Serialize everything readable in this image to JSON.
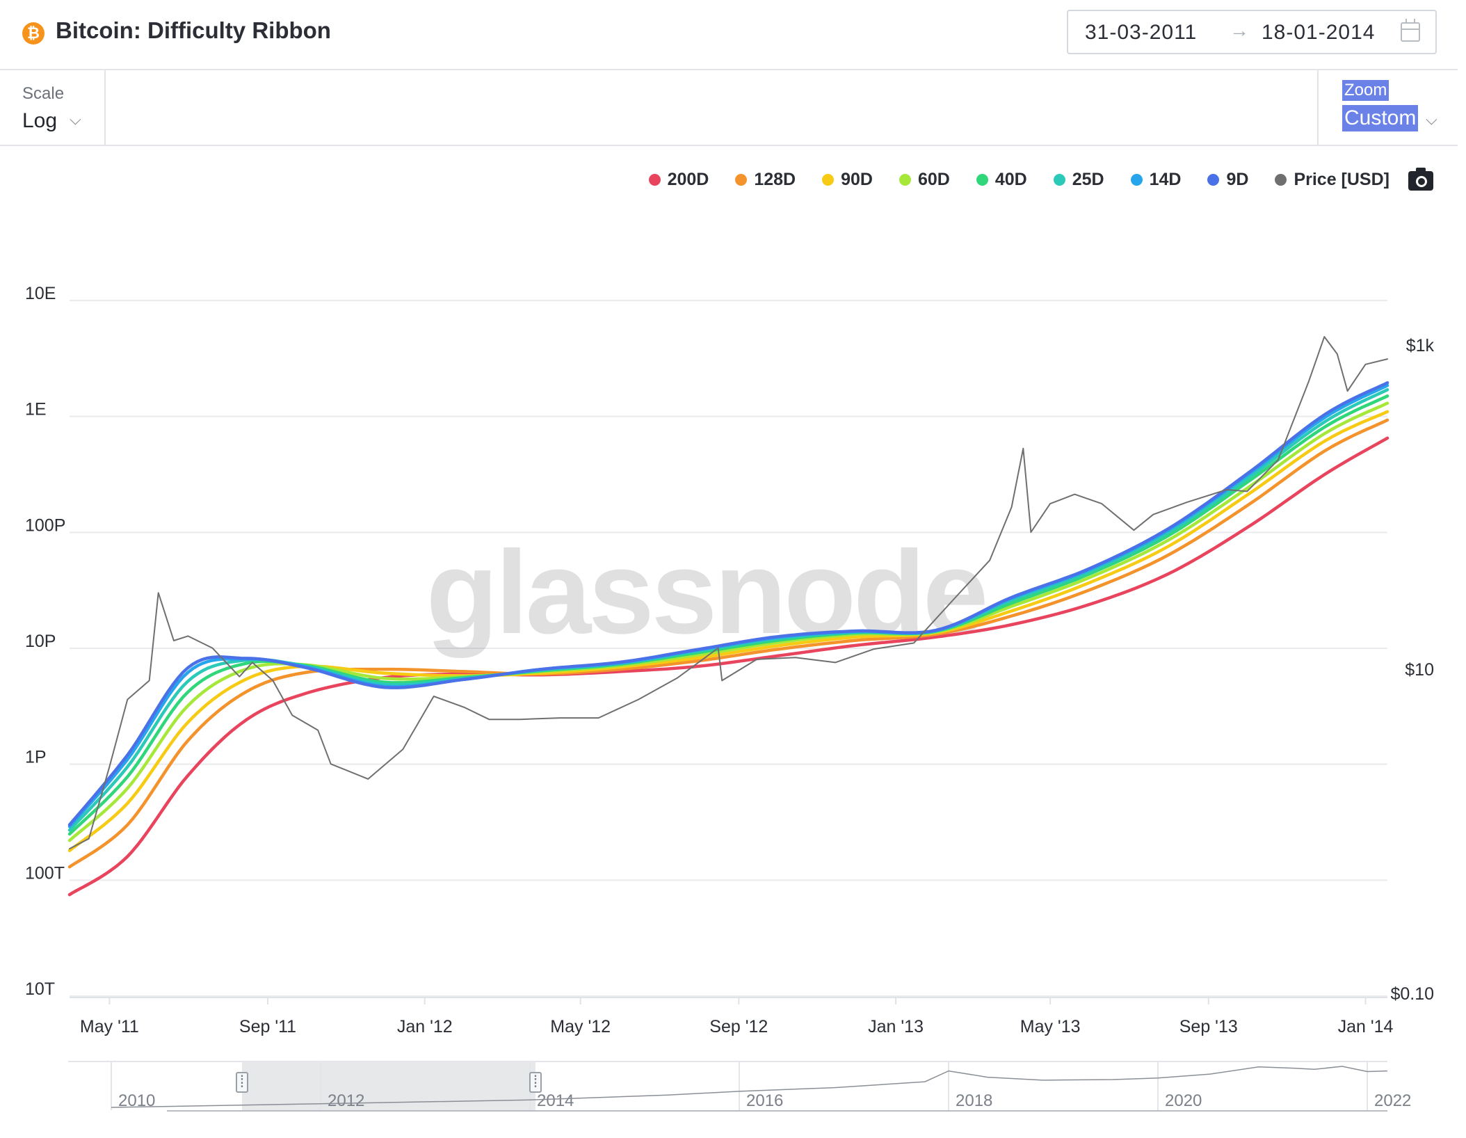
{
  "header": {
    "logo_glyph": "₿",
    "title": "Bitcoin: Difficulty Ribbon",
    "date_from": "31-03-2011",
    "date_arrow": "→",
    "date_to": "18-01-2014"
  },
  "toolbar": {
    "scale_label": "Scale",
    "scale_value": "Log",
    "zoom_label": "Zoom",
    "zoom_value": "Custom",
    "chevron": "⌵"
  },
  "watermark": "glassnode",
  "chart_data": {
    "type": "line",
    "title": "Bitcoin: Difficulty Ribbon",
    "x_range": [
      "2011-03-31",
      "2014-01-18"
    ],
    "x_ticks": [
      "May '11",
      "Sep '11",
      "Jan '12",
      "May '12",
      "Sep '12",
      "Jan '13",
      "May '13",
      "Sep '13",
      "Jan '14"
    ],
    "y_left": {
      "scale": "log",
      "ticks": [
        "10E",
        "1E",
        "100P",
        "10P",
        "1P",
        "100T",
        "10T"
      ],
      "range": [
        10000000000000.0,
        1e+19
      ]
    },
    "y_right": {
      "scale": "log",
      "ticks": [
        "$1k",
        "$10",
        "$0.10"
      ],
      "range_usd": [
        0.1,
        2500
      ]
    },
    "legend_position": "top-right",
    "grid": true,
    "series": [
      {
        "name": "200D",
        "color": "#e8445d",
        "points": [
          [
            "2011-03-31",
            75000000000000.0
          ],
          [
            "2011-05-15",
            160000000000000.0
          ],
          [
            "2011-07-01",
            800000000000000.0
          ],
          [
            "2011-08-15",
            2400000000000000.0
          ],
          [
            "2011-10-01",
            4100000000000000.0
          ],
          [
            "2011-12-01",
            5600000000000000.0
          ],
          [
            "2012-02-01",
            6000000000000000.0
          ],
          [
            "2012-04-01",
            5900000000000000.0
          ],
          [
            "2012-06-01",
            6300000000000000.0
          ],
          [
            "2012-08-01",
            7000000000000000.0
          ],
          [
            "2012-10-01",
            8600000000000000.0
          ],
          [
            "2012-12-01",
            1.06e+16
          ],
          [
            "2013-02-01",
            1.25e+16
          ],
          [
            "2013-04-01",
            1.6e+16
          ],
          [
            "2013-06-01",
            2.4e+16
          ],
          [
            "2013-08-01",
            4.4e+16
          ],
          [
            "2013-10-01",
            1.1e+17
          ],
          [
            "2013-12-01",
            3.2e+17
          ],
          [
            "2014-01-18",
            6.5e+17
          ]
        ]
      },
      {
        "name": "128D",
        "color": "#f4922b",
        "points": [
          [
            "2011-03-31",
            130000000000000.0
          ],
          [
            "2011-05-15",
            300000000000000.0
          ],
          [
            "2011-07-01",
            1600000000000000.0
          ],
          [
            "2011-08-15",
            4200000000000000.0
          ],
          [
            "2011-10-01",
            6200000000000000.0
          ],
          [
            "2011-12-01",
            6600000000000000.0
          ],
          [
            "2012-02-01",
            6300000000000000.0
          ],
          [
            "2012-04-01",
            6000000000000000.0
          ],
          [
            "2012-06-01",
            6600000000000000.0
          ],
          [
            "2012-08-01",
            7800000000000000.0
          ],
          [
            "2012-10-01",
            9800000000000000.0
          ],
          [
            "2012-12-01",
            1.17e+16
          ],
          [
            "2013-02-01",
            1.32e+16
          ],
          [
            "2013-04-01",
            1.9e+16
          ],
          [
            "2013-06-01",
            3.2e+16
          ],
          [
            "2013-08-01",
            6.4e+16
          ],
          [
            "2013-10-01",
            1.7e+17
          ],
          [
            "2013-12-01",
            5.1e+17
          ],
          [
            "2014-01-18",
            9.3e+17
          ]
        ]
      },
      {
        "name": "90D",
        "color": "#f7cb13",
        "points": [
          [
            "2011-03-31",
            180000000000000.0
          ],
          [
            "2011-05-15",
            460000000000000.0
          ],
          [
            "2011-07-01",
            2300000000000000.0
          ],
          [
            "2011-08-15",
            5400000000000000.0
          ],
          [
            "2011-10-01",
            7000000000000000.0
          ],
          [
            "2011-12-01",
            6100000000000000.0
          ],
          [
            "2012-02-01",
            5800000000000000.0
          ],
          [
            "2012-04-01",
            6100000000000000.0
          ],
          [
            "2012-06-01",
            6900000000000000.0
          ],
          [
            "2012-08-01",
            8300000000000000.0
          ],
          [
            "2012-10-01",
            1.05e+16
          ],
          [
            "2012-12-01",
            1.25e+16
          ],
          [
            "2013-02-01",
            1.36e+16
          ],
          [
            "2013-04-01",
            2.1e+16
          ],
          [
            "2013-06-01",
            3.7e+16
          ],
          [
            "2013-08-01",
            7.6e+16
          ],
          [
            "2013-10-01",
            2.1e+17
          ],
          [
            "2013-12-01",
            6.2e+17
          ],
          [
            "2014-01-18",
            1.1e+18
          ]
        ]
      },
      {
        "name": "60D",
        "color": "#a6e83a",
        "points": [
          [
            "2011-03-31",
            220000000000000.0
          ],
          [
            "2011-05-15",
            620000000000000.0
          ],
          [
            "2011-07-01",
            3200000000000000.0
          ],
          [
            "2011-08-15",
            6600000000000000.0
          ],
          [
            "2011-10-01",
            7200000000000000.0
          ],
          [
            "2011-12-01",
            5500000000000000.0
          ],
          [
            "2012-02-01",
            5700000000000000.0
          ],
          [
            "2012-04-01",
            6300000000000000.0
          ],
          [
            "2012-06-01",
            7100000000000000.0
          ],
          [
            "2012-08-01",
            8800000000000000.0
          ],
          [
            "2012-10-01",
            1.12e+16
          ],
          [
            "2012-12-01",
            1.32e+16
          ],
          [
            "2013-02-01",
            1.38e+16
          ],
          [
            "2013-04-01",
            2.3e+16
          ],
          [
            "2013-06-01",
            4.1e+16
          ],
          [
            "2013-08-01",
            8.6e+16
          ],
          [
            "2013-10-01",
            2.4e+17
          ],
          [
            "2013-12-01",
            7.2e+17
          ],
          [
            "2014-01-18",
            1.3e+18
          ]
        ]
      },
      {
        "name": "40D",
        "color": "#2fd67a",
        "points": [
          [
            "2011-03-31",
            250000000000000.0
          ],
          [
            "2011-05-15",
            780000000000000.0
          ],
          [
            "2011-07-01",
            4200000000000000.0
          ],
          [
            "2011-08-15",
            7400000000000000.0
          ],
          [
            "2011-10-01",
            7100000000000000.0
          ],
          [
            "2011-12-01",
            5100000000000000.0
          ],
          [
            "2012-02-01",
            5600000000000000.0
          ],
          [
            "2012-04-01",
            6400000000000000.0
          ],
          [
            "2012-06-01",
            7300000000000000.0
          ],
          [
            "2012-08-01",
            9200000000000000.0
          ],
          [
            "2012-10-01",
            1.17e+16
          ],
          [
            "2012-12-01",
            1.36e+16
          ],
          [
            "2013-02-01",
            1.4e+16
          ],
          [
            "2013-04-01",
            2.45e+16
          ],
          [
            "2013-06-01",
            4.4e+16
          ],
          [
            "2013-08-01",
            9.4e+16
          ],
          [
            "2013-10-01",
            2.7e+17
          ],
          [
            "2013-12-01",
            8.2e+17
          ],
          [
            "2014-01-18",
            1.5e+18
          ]
        ]
      },
      {
        "name": "25D",
        "color": "#2bc9b8",
        "points": [
          [
            "2011-03-31",
            270000000000000.0
          ],
          [
            "2011-05-15",
            950000000000000.0
          ],
          [
            "2011-07-01",
            5200000000000000.0
          ],
          [
            "2011-08-15",
            7900000000000000.0
          ],
          [
            "2011-10-01",
            7000000000000000.0
          ],
          [
            "2011-12-01",
            4900000000000000.0
          ],
          [
            "2012-02-01",
            5500000000000000.0
          ],
          [
            "2012-04-01",
            6500000000000000.0
          ],
          [
            "2012-06-01",
            7400000000000000.0
          ],
          [
            "2012-08-01",
            9500000000000000.0
          ],
          [
            "2012-10-01",
            1.21e+16
          ],
          [
            "2012-12-01",
            1.38e+16
          ],
          [
            "2013-02-01",
            1.41e+16
          ],
          [
            "2013-04-01",
            2.6e+16
          ],
          [
            "2013-06-01",
            4.6e+16
          ],
          [
            "2013-08-01",
            1e+17
          ],
          [
            "2013-10-01",
            2.9e+17
          ],
          [
            "2013-12-01",
            9.1e+17
          ],
          [
            "2014-01-18",
            1.7e+18
          ]
        ]
      },
      {
        "name": "14D",
        "color": "#26a5ec",
        "points": [
          [
            "2011-03-31",
            290000000000000.0
          ],
          [
            "2011-05-15",
            1100000000000000.0
          ],
          [
            "2011-07-01",
            6200000000000000.0
          ],
          [
            "2011-08-15",
            8100000000000000.0
          ],
          [
            "2011-10-01",
            6900000000000000.0
          ],
          [
            "2011-12-01",
            4700000000000000.0
          ],
          [
            "2012-02-01",
            5400000000000000.0
          ],
          [
            "2012-04-01",
            6600000000000000.0
          ],
          [
            "2012-06-01",
            7500000000000000.0
          ],
          [
            "2012-08-01",
            9700000000000000.0
          ],
          [
            "2012-10-01",
            1.24e+16
          ],
          [
            "2012-12-01",
            1.4e+16
          ],
          [
            "2013-02-01",
            1.42e+16
          ],
          [
            "2013-04-01",
            2.7e+16
          ],
          [
            "2013-06-01",
            4.8e+16
          ],
          [
            "2013-08-01",
            1.05e+17
          ],
          [
            "2013-10-01",
            3.1e+17
          ],
          [
            "2013-12-01",
            9.9e+17
          ],
          [
            "2014-01-18",
            1.85e+18
          ]
        ]
      },
      {
        "name": "9D",
        "color": "#4a71e8",
        "points": [
          [
            "2011-03-31",
            300000000000000.0
          ],
          [
            "2011-05-15",
            1200000000000000.0
          ],
          [
            "2011-07-01",
            6800000000000000.0
          ],
          [
            "2011-08-15",
            8200000000000000.0
          ],
          [
            "2011-10-01",
            6800000000000000.0
          ],
          [
            "2011-12-01",
            4600000000000000.0
          ],
          [
            "2012-02-01",
            5400000000000000.0
          ],
          [
            "2012-04-01",
            6600000000000000.0
          ],
          [
            "2012-06-01",
            7600000000000000.0
          ],
          [
            "2012-08-01",
            9800000000000000.0
          ],
          [
            "2012-10-01",
            1.26e+16
          ],
          [
            "2012-12-01",
            1.41e+16
          ],
          [
            "2013-02-01",
            1.43e+16
          ],
          [
            "2013-04-01",
            2.75e+16
          ],
          [
            "2013-06-01",
            4.9e+16
          ],
          [
            "2013-08-01",
            1.08e+17
          ],
          [
            "2013-10-01",
            3.2e+17
          ],
          [
            "2013-12-01",
            1.05e+18
          ],
          [
            "2014-01-18",
            1.95e+18
          ]
        ]
      },
      {
        "name": "Price [USD]",
        "color": "#6f6f6f",
        "points": [
          [
            "2011-03-31",
            0.78
          ],
          [
            "2011-04-15",
            0.9
          ],
          [
            "2011-05-01",
            2.5
          ],
          [
            "2011-05-15",
            6.5
          ],
          [
            "2011-06-01",
            8.5
          ],
          [
            "2011-06-08",
            29.6
          ],
          [
            "2011-06-20",
            15
          ],
          [
            "2011-07-01",
            16
          ],
          [
            "2011-07-20",
            13.5
          ],
          [
            "2011-08-10",
            9
          ],
          [
            "2011-08-20",
            11
          ],
          [
            "2011-09-05",
            8.5
          ],
          [
            "2011-09-20",
            5.2
          ],
          [
            "2011-10-10",
            4.2
          ],
          [
            "2011-10-20",
            2.6
          ],
          [
            "2011-11-18",
            2.1
          ],
          [
            "2011-12-15",
            3.2
          ],
          [
            "2012-01-08",
            6.8
          ],
          [
            "2012-02-01",
            5.8
          ],
          [
            "2012-02-20",
            4.9
          ],
          [
            "2012-03-15",
            4.9
          ],
          [
            "2012-04-15",
            5.0
          ],
          [
            "2012-05-15",
            5.0
          ],
          [
            "2012-06-15",
            6.5
          ],
          [
            "2012-07-15",
            8.8
          ],
          [
            "2012-08-16",
            13.5
          ],
          [
            "2012-08-19",
            8.5
          ],
          [
            "2012-09-15",
            11.5
          ],
          [
            "2012-10-15",
            11.8
          ],
          [
            "2012-11-15",
            11.0
          ],
          [
            "2012-12-15",
            13.3
          ],
          [
            "2013-01-15",
            14.5
          ],
          [
            "2013-02-15",
            27
          ],
          [
            "2013-03-15",
            47
          ],
          [
            "2013-04-01",
            100
          ],
          [
            "2013-04-10",
            230
          ],
          [
            "2013-04-16",
            70
          ],
          [
            "2013-05-01",
            105
          ],
          [
            "2013-05-20",
            120
          ],
          [
            "2013-06-10",
            105
          ],
          [
            "2013-07-05",
            72
          ],
          [
            "2013-07-20",
            90
          ],
          [
            "2013-08-15",
            107
          ],
          [
            "2013-09-15",
            128
          ],
          [
            "2013-10-01",
            125
          ],
          [
            "2013-10-25",
            195
          ],
          [
            "2013-11-18",
            600
          ],
          [
            "2013-11-30",
            1125
          ],
          [
            "2013-12-10",
            880
          ],
          [
            "2013-12-18",
            520
          ],
          [
            "2014-01-01",
            760
          ],
          [
            "2014-01-18",
            820
          ]
        ]
      }
    ]
  },
  "navigator": {
    "labels": [
      "2010",
      "2012",
      "2014",
      "2016",
      "2018",
      "2020",
      "2022"
    ],
    "handle_glyph": "⁞"
  }
}
